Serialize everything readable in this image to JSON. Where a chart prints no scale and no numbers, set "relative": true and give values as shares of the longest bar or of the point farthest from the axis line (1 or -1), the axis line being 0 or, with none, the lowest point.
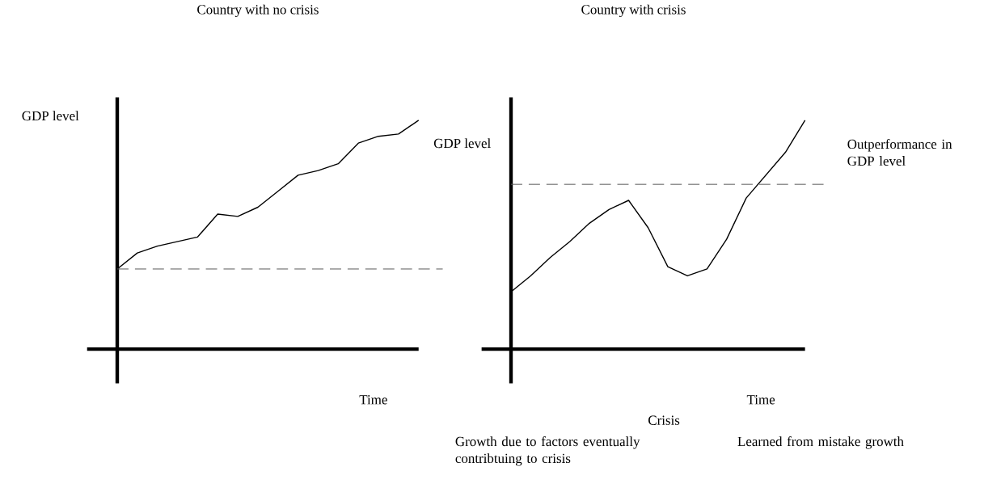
{
  "chart_data": [
    {
      "type": "line",
      "title": "Country with no crisis",
      "ylabel": "GDP level",
      "xlabel": "Time",
      "relative": true,
      "categories": [
        null,
        null,
        null,
        null,
        null,
        null,
        null,
        null,
        null,
        null,
        null,
        null,
        null,
        null,
        null,
        null
      ],
      "series": [
        {
          "color": "#000000",
          "values": [
            0.35,
            0.42,
            0.45,
            0.47,
            0.49,
            0.59,
            0.58,
            0.62,
            0.69,
            0.76,
            0.78,
            0.81,
            0.9,
            0.93,
            0.94,
            1
          ]
        }
      ],
      "ref_lines": [
        {
          "axis": "y",
          "value": 0.35,
          "line_style": "dashed"
        }
      ]
    },
    {
      "type": "line",
      "title": "Country with crisis",
      "ylabel": "GDP level",
      "xlabel": "Time",
      "relative": true,
      "categories": [
        null,
        null,
        null,
        null,
        null,
        null,
        null,
        null,
        null,
        null,
        null,
        null,
        null,
        null,
        null,
        null
      ],
      "series": [
        {
          "color": "#000000",
          "values": [
            0.25,
            0.32,
            0.4,
            0.47,
            0.55,
            0.61,
            0.65,
            0.53,
            0.36,
            0.32,
            0.35,
            0.48,
            0.66,
            0.76,
            0.86,
            1
          ]
        }
      ],
      "ref_lines": [
        {
          "axis": "y",
          "value": 0.72,
          "line_style": "dashed"
        }
      ],
      "annotations": [
        "Outperformance in GDP level",
        "Growth due to factors eventually contribtuing to crisis",
        "Crisis",
        "Learned from mistake growth"
      ]
    }
  ]
}
